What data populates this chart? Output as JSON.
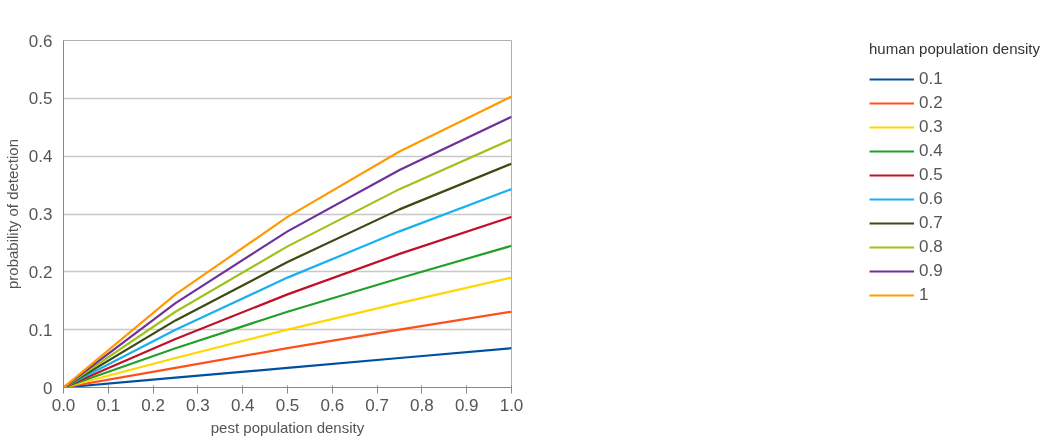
{
  "chart_data": {
    "type": "line",
    "xlabel": "pest population density",
    "ylabel": "probability of detection",
    "legend_title": "human population density",
    "legend": "right",
    "grid": "y",
    "line_style": "solid",
    "marker": "none",
    "x": [
      0,
      0.25,
      0.5,
      0.75,
      1
    ],
    "xlim": [
      0,
      1
    ],
    "xticks": [
      {
        "value": 0,
        "label": "0.0"
      },
      {
        "value": 0.1,
        "label": "0.1"
      },
      {
        "value": 0.2,
        "label": "0.2"
      },
      {
        "value": 0.3,
        "label": "0.3"
      },
      {
        "value": 0.4,
        "label": "0.4"
      },
      {
        "value": 0.5,
        "label": "0.5"
      },
      {
        "value": 0.6,
        "label": "0.6"
      },
      {
        "value": 0.7,
        "label": "0.7"
      },
      {
        "value": 0.8,
        "label": "0.8"
      },
      {
        "value": 0.9,
        "label": "0.9"
      },
      {
        "value": 1,
        "label": "1.0"
      }
    ],
    "ylim": [
      0,
      0.6
    ],
    "yticks": [
      0,
      0.1,
      0.2,
      0.3,
      0.4,
      0.5,
      0.6
    ],
    "series": [
      {
        "name": "0.1",
        "color": "#0050a0",
        "values": [
          0,
          0.017,
          0.034,
          0.051,
          0.068
        ]
      },
      {
        "name": "0.2",
        "color": "#ff4f1a",
        "values": [
          0,
          0.034,
          0.068,
          0.1,
          0.131
        ]
      },
      {
        "name": "0.3",
        "color": "#ffd700",
        "values": [
          0,
          0.051,
          0.1,
          0.146,
          0.19
        ]
      },
      {
        "name": "0.4",
        "color": "#22a02a",
        "values": [
          0,
          0.068,
          0.131,
          0.189,
          0.245
        ]
      },
      {
        "name": "0.5",
        "color": "#c0102a",
        "values": [
          0,
          0.084,
          0.161,
          0.231,
          0.295
        ]
      },
      {
        "name": "0.6",
        "color": "#1ab0f0",
        "values": [
          0,
          0.1,
          0.19,
          0.27,
          0.343
        ]
      },
      {
        "name": "0.7",
        "color": "#3a4a10",
        "values": [
          0,
          0.116,
          0.217,
          0.308,
          0.387
        ]
      },
      {
        "name": "0.8",
        "color": "#9ec21a",
        "values": [
          0,
          0.131,
          0.244,
          0.343,
          0.429
        ]
      },
      {
        "name": "0.9",
        "color": "#70309a",
        "values": [
          0,
          0.146,
          0.27,
          0.376,
          0.468
        ]
      },
      {
        "name": "1",
        "color": "#ff9a00",
        "values": [
          0,
          0.161,
          0.295,
          0.408,
          0.503
        ]
      }
    ]
  }
}
